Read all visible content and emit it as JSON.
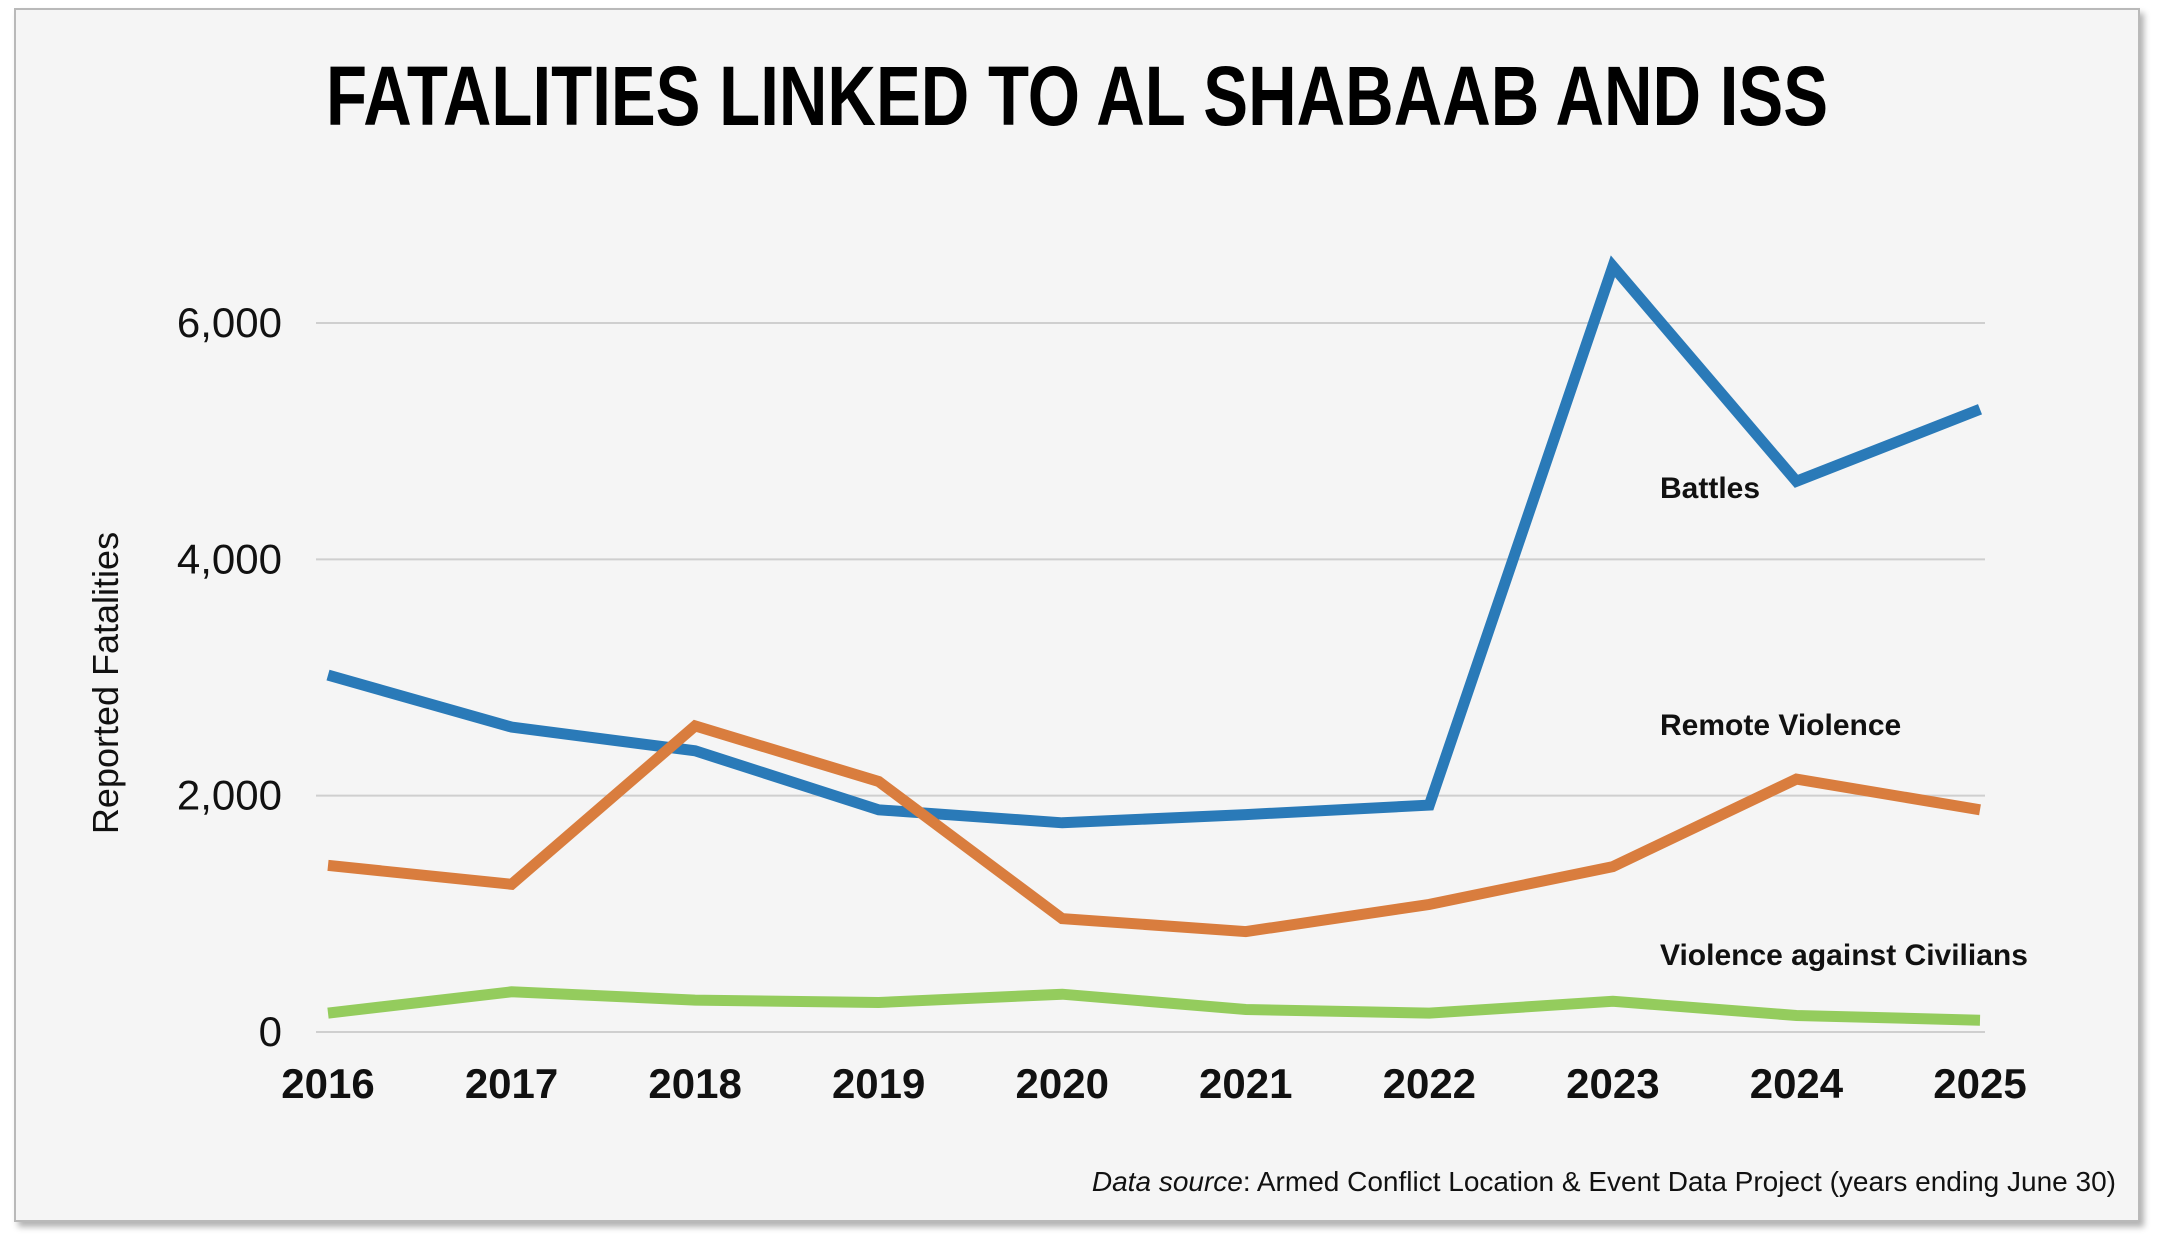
{
  "title": "FATALITIES LINKED TO AL SHABAAB AND ISS",
  "source": {
    "lead": "Data source",
    "text": ": Armed Conflict Location & Event Data Project (years ending June 30)"
  },
  "chart_data": {
    "type": "line",
    "title": "FATALITIES LINKED TO AL SHABAAB AND ISS",
    "xlabel": "",
    "ylabel": "Reported Fatalities",
    "x": [
      "2016",
      "2017",
      "2018",
      "2019",
      "2020",
      "2021",
      "2022",
      "2023",
      "2024",
      "2025"
    ],
    "ylim": [
      0,
      6600
    ],
    "yticks": [
      0,
      2000,
      4000,
      6000
    ],
    "ytick_labels": [
      "0",
      "2,000",
      "4,000",
      "6,000"
    ],
    "grid": "horizontal",
    "legend": "inline labels at right",
    "series": [
      {
        "name": "Battles",
        "color": "#2a7ab8",
        "values": [
          3020,
          2580,
          2380,
          1880,
          1770,
          1840,
          1920,
          6480,
          4660,
          5270
        ]
      },
      {
        "name": "Remote Violence",
        "color": "#d97d3e",
        "values": [
          1410,
          1250,
          2590,
          2120,
          960,
          850,
          1080,
          1400,
          2140,
          1880
        ]
      },
      {
        "name": "Violence against Civilians",
        "color": "#94cc5d",
        "values": [
          160,
          340,
          270,
          250,
          320,
          190,
          160,
          260,
          140,
          100
        ]
      }
    ]
  }
}
